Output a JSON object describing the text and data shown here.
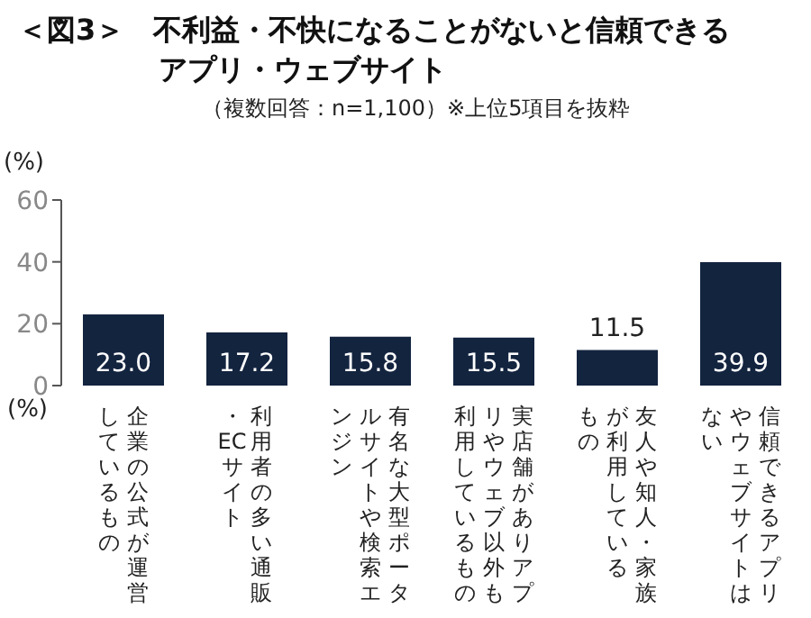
{
  "chart_data": {
    "type": "bar",
    "title": "＜図3＞　不利益・不快になることがないと信頼できるアプリ・ウェブサイト",
    "subtitle": "（複数回答：n=1,100）※上位5項目を抜粋",
    "ylabel": "(%)",
    "annotations": [
      "(%)"
    ],
    "categories": [
      "企業の公式が運営しているもの",
      "利用者の多い通販・ECサイト",
      "有名な大型ポータルサイトや検索エンジン",
      "実店舗がありアプリやウェブ以外も利用しているもの",
      "友人や知人・家族が利用しているもの",
      "信頼できるアプリやウェブサイトはない"
    ],
    "values": [
      23.0,
      17.2,
      15.8,
      15.5,
      11.5,
      39.9
    ],
    "value_labels": [
      "23.0",
      "17.2",
      "15.8",
      "15.5",
      "11.5",
      "39.9"
    ],
    "color": "#13243f",
    "ylim": [
      0,
      60
    ],
    "yticks": [
      0,
      20,
      40,
      60
    ]
  }
}
